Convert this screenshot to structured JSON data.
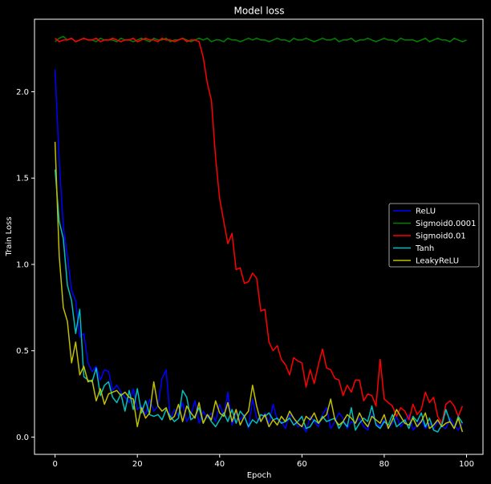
{
  "chart_data": {
    "type": "line",
    "title": "Model loss",
    "xlabel": "Epoch",
    "ylabel": "Train Loss",
    "xlim": [
      -5,
      104
    ],
    "ylim": [
      -0.1,
      2.42
    ],
    "xticks": [
      "0",
      "20",
      "40",
      "60",
      "80",
      "100"
    ],
    "yticks": [
      "0.0",
      "0.5",
      "1.0",
      "1.5",
      "2.0"
    ],
    "legend_position": "center-right",
    "grid": false,
    "colors": {
      "background": "#000000",
      "text": "#ffffff"
    },
    "series": [
      {
        "name": "ReLU",
        "color": "#0000ff",
        "y": [
          2.13,
          1.6,
          1.22,
          1.05,
          0.85,
          0.79,
          0.58,
          0.6,
          0.43,
          0.38,
          0.41,
          0.33,
          0.39,
          0.38,
          0.27,
          0.3,
          0.26,
          0.23,
          0.2,
          0.28,
          0.16,
          0.18,
          0.13,
          0.22,
          0.15,
          0.18,
          0.34,
          0.39,
          0.1,
          0.16,
          0.12,
          0.2,
          0.09,
          0.13,
          0.21,
          0.08,
          0.15,
          0.11,
          0.14,
          0.09,
          0.19,
          0.12,
          0.26,
          0.07,
          0.14,
          0.1,
          0.13,
          0.05,
          0.22,
          0.11,
          0.09,
          0.14,
          0.08,
          0.19,
          0.1,
          0.09,
          0.05,
          0.13,
          0.11,
          0.06,
          0.07,
          0.03,
          0.12,
          0.09,
          0.06,
          0.13,
          0.17,
          0.05,
          0.09,
          0.14,
          0.11,
          0.05,
          0.09,
          0.08,
          0.11,
          0.06,
          0.04,
          0.13,
          0.08,
          0.06,
          0.1,
          0.05,
          0.08,
          0.12,
          0.06,
          0.09,
          0.13,
          0.04,
          0.07,
          0.1,
          0.05,
          0.08,
          0.05,
          0.09,
          0.06,
          0.05,
          0.11,
          0.07,
          0.04,
          0.08
        ]
      },
      {
        "name": "Sigmoid0.0001",
        "color": "#008000",
        "y": [
          2.29,
          2.31,
          2.32,
          2.3,
          2.31,
          2.29,
          2.3,
          2.31,
          2.3,
          2.3,
          2.29,
          2.31,
          2.3,
          2.3,
          2.3,
          2.29,
          2.31,
          2.3,
          2.3,
          2.29,
          2.3,
          2.31,
          2.3,
          2.29,
          2.31,
          2.3,
          2.3,
          2.31,
          2.29,
          2.3,
          2.3,
          2.31,
          2.3,
          2.29,
          2.3,
          2.31,
          2.3,
          2.31,
          2.29,
          2.3,
          2.3,
          2.29,
          2.31,
          2.3,
          2.3,
          2.29,
          2.3,
          2.31,
          2.3,
          2.31,
          2.3,
          2.3,
          2.29,
          2.3,
          2.31,
          2.3,
          2.3,
          2.29,
          2.31,
          2.3,
          2.3,
          2.31,
          2.3,
          2.29,
          2.3,
          2.31,
          2.3,
          2.3,
          2.31,
          2.29,
          2.3,
          2.3,
          2.31,
          2.29,
          2.3,
          2.3,
          2.31,
          2.3,
          2.29,
          2.3,
          2.31,
          2.3,
          2.3,
          2.29,
          2.31,
          2.3,
          2.3,
          2.3,
          2.29,
          2.3,
          2.31,
          2.29,
          2.3,
          2.31,
          2.3,
          2.3,
          2.29,
          2.31,
          2.3,
          2.29,
          2.3
        ]
      },
      {
        "name": "Sigmoid0.01",
        "color": "#ff0000",
        "y": [
          2.31,
          2.29,
          2.3,
          2.3,
          2.31,
          2.29,
          2.3,
          2.31,
          2.3,
          2.3,
          2.31,
          2.29,
          2.3,
          2.3,
          2.31,
          2.3,
          2.29,
          2.3,
          2.3,
          2.31,
          2.29,
          2.3,
          2.31,
          2.3,
          2.3,
          2.29,
          2.31,
          2.3,
          2.3,
          2.29,
          2.3,
          2.31,
          2.29,
          2.3,
          2.3,
          2.29,
          2.2,
          2.05,
          1.95,
          1.62,
          1.38,
          1.25,
          1.12,
          1.18,
          0.97,
          0.98,
          0.89,
          0.9,
          0.95,
          0.92,
          0.73,
          0.74,
          0.55,
          0.5,
          0.53,
          0.45,
          0.42,
          0.36,
          0.46,
          0.44,
          0.43,
          0.29,
          0.39,
          0.31,
          0.42,
          0.51,
          0.4,
          0.39,
          0.34,
          0.33,
          0.24,
          0.3,
          0.26,
          0.33,
          0.33,
          0.21,
          0.25,
          0.24,
          0.18,
          0.45,
          0.22,
          0.2,
          0.18,
          0.12,
          0.17,
          0.15,
          0.1,
          0.19,
          0.13,
          0.16,
          0.26,
          0.2,
          0.23,
          0.12,
          0.08,
          0.19,
          0.21,
          0.18,
          0.12,
          0.18
        ]
      },
      {
        "name": "Tanh",
        "color": "#00bfbf",
        "y": [
          1.55,
          1.25,
          1.15,
          0.88,
          0.79,
          0.6,
          0.74,
          0.35,
          0.33,
          0.32,
          0.4,
          0.24,
          0.3,
          0.32,
          0.23,
          0.2,
          0.25,
          0.15,
          0.27,
          0.16,
          0.28,
          0.14,
          0.21,
          0.13,
          0.12,
          0.13,
          0.1,
          0.16,
          0.12,
          0.09,
          0.11,
          0.27,
          0.23,
          0.1,
          0.12,
          0.17,
          0.08,
          0.13,
          0.09,
          0.06,
          0.1,
          0.14,
          0.09,
          0.16,
          0.08,
          0.15,
          0.12,
          0.06,
          0.1,
          0.08,
          0.13,
          0.12,
          0.14,
          0.1,
          0.11,
          0.08,
          0.09,
          0.11,
          0.07,
          0.09,
          0.12,
          0.05,
          0.06,
          0.1,
          0.08,
          0.12,
          0.09,
          0.1,
          0.11,
          0.05,
          0.09,
          0.06,
          0.17,
          0.04,
          0.08,
          0.11,
          0.09,
          0.18,
          0.07,
          0.05,
          0.09,
          0.07,
          0.13,
          0.06,
          0.08,
          0.1,
          0.05,
          0.12,
          0.09,
          0.14,
          0.06,
          0.11,
          0.04,
          0.03,
          0.07,
          0.16,
          0.09,
          0.05,
          0.12,
          0.08
        ]
      },
      {
        "name": "LeakyReLU",
        "color": "#bfbf00",
        "y": [
          1.71,
          1.05,
          0.75,
          0.67,
          0.43,
          0.55,
          0.36,
          0.41,
          0.32,
          0.33,
          0.21,
          0.28,
          0.19,
          0.25,
          0.26,
          0.27,
          0.24,
          0.26,
          0.23,
          0.22,
          0.06,
          0.17,
          0.11,
          0.14,
          0.32,
          0.18,
          0.15,
          0.17,
          0.1,
          0.12,
          0.19,
          0.09,
          0.18,
          0.14,
          0.11,
          0.2,
          0.08,
          0.13,
          0.1,
          0.21,
          0.14,
          0.12,
          0.2,
          0.09,
          0.16,
          0.07,
          0.12,
          0.15,
          0.3,
          0.18,
          0.09,
          0.13,
          0.06,
          0.1,
          0.07,
          0.12,
          0.09,
          0.15,
          0.11,
          0.08,
          0.06,
          0.12,
          0.1,
          0.14,
          0.08,
          0.11,
          0.13,
          0.22,
          0.1,
          0.07,
          0.09,
          0.13,
          0.11,
          0.08,
          0.14,
          0.09,
          0.06,
          0.12,
          0.1,
          0.08,
          0.13,
          0.05,
          0.1,
          0.16,
          0.12,
          0.08,
          0.07,
          0.11,
          0.06,
          0.09,
          0.14,
          0.05,
          0.07,
          0.1,
          0.06,
          0.08,
          0.09,
          0.05,
          0.11,
          0.03
        ]
      }
    ]
  }
}
